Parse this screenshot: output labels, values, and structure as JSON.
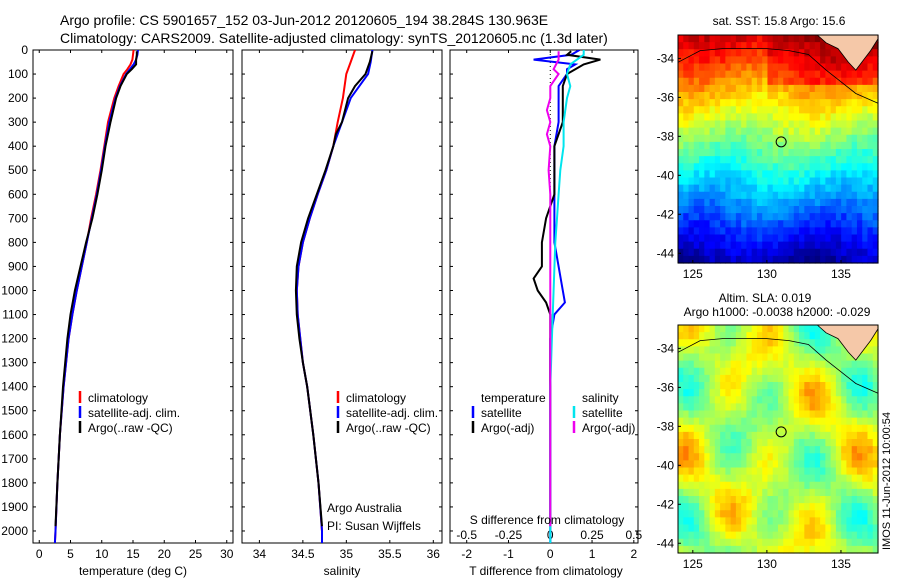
{
  "header": {
    "line1": "Argo profile: CS 5901657_152 03-Jun-2012 20120605_194 38.284S 130.963E",
    "line2": "Climatology: CARS2009. Satellite-adjusted climatology: synTS_20120605.nc (1.3d later)"
  },
  "colors": {
    "climatology": "#ff0000",
    "satellite": "#0000ff",
    "argo": "#000000",
    "salinity_satellite": "#00e5ee",
    "salinity_argo": "#ee00ee",
    "land": "#f5c8a8",
    "coast": "#000000"
  },
  "chart_data": [
    {
      "type": "line",
      "xlabel": "temperature (deg C)",
      "ylabel": "",
      "xlim": [
        -1,
        31
      ],
      "xticks": [
        0,
        5,
        10,
        15,
        20,
        25,
        30
      ],
      "ylim": [
        2050,
        0
      ],
      "yticks": [
        0,
        100,
        200,
        300,
        400,
        500,
        600,
        700,
        800,
        900,
        1000,
        1100,
        1200,
        1300,
        1400,
        1500,
        1600,
        1700,
        1800,
        1900,
        2000
      ],
      "grid": false,
      "legend": [
        "climatology",
        "satellite-adj. clim.",
        "Argo(..raw -QC)"
      ],
      "series": [
        {
          "name": "climatology",
          "color": "#ff0000",
          "depth": [
            0,
            20,
            40,
            60,
            80,
            100,
            150,
            200,
            300,
            400,
            500,
            600,
            700,
            800,
            900,
            1000,
            1100,
            1200,
            1400,
            1600,
            1800,
            2000,
            2050
          ],
          "values": [
            15.1,
            15.0,
            14.9,
            14.6,
            14.1,
            13.5,
            12.7,
            12.0,
            11.0,
            10.4,
            9.8,
            9.1,
            8.3,
            7.6,
            6.8,
            6.0,
            5.3,
            4.7,
            3.9,
            3.3,
            2.9,
            2.6,
            2.5
          ]
        },
        {
          "name": "satellite-adj. clim.",
          "color": "#0000ff",
          "depth": [
            0,
            20,
            40,
            60,
            80,
            100,
            150,
            200,
            300,
            400,
            500,
            600,
            700,
            800,
            900,
            1000,
            1100,
            1200,
            1400,
            1600,
            1800,
            2000,
            2050
          ],
          "values": [
            15.8,
            15.7,
            15.5,
            15.1,
            14.5,
            13.9,
            12.9,
            12.2,
            11.2,
            10.5,
            9.9,
            9.2,
            8.4,
            7.6,
            6.8,
            6.0,
            5.3,
            4.7,
            3.9,
            3.3,
            2.9,
            2.6,
            2.5
          ]
        },
        {
          "name": "Argo(..raw -QC)",
          "color": "#000000",
          "depth": [
            5,
            20,
            40,
            60,
            80,
            100,
            150,
            200,
            300,
            400,
            500,
            600,
            700,
            800,
            900,
            1000,
            1100,
            1200,
            1400,
            1600,
            1800,
            1980
          ],
          "values": [
            15.6,
            15.6,
            15.5,
            15.5,
            14.8,
            14.0,
            13.0,
            12.3,
            11.4,
            10.6,
            10.0,
            9.3,
            8.5,
            7.5,
            6.6,
            5.7,
            5.0,
            4.5,
            3.8,
            3.3,
            2.9,
            2.6
          ]
        }
      ]
    },
    {
      "type": "line",
      "xlabel": "salinity",
      "ylabel": "",
      "xlim": [
        33.8,
        36.1
      ],
      "xticks": [
        34,
        34.5,
        35,
        35.5,
        36
      ],
      "ylim": [
        2050,
        0
      ],
      "grid": false,
      "legend": [
        "climatology",
        "satellite-adj. clim.",
        "Argo(..raw -QC)"
      ],
      "annotation": [
        "Argo Australia",
        "PI: Susan Wijffels"
      ],
      "series": [
        {
          "name": "climatology",
          "color": "#ff0000",
          "depth": [
            0,
            50,
            100,
            200,
            300,
            400,
            500,
            600,
            700,
            800,
            900,
            1000,
            1100,
            1200,
            1300,
            1400,
            1600,
            1800,
            2000,
            2050
          ],
          "values": [
            35.1,
            35.05,
            35.0,
            34.96,
            34.9,
            34.85,
            34.77,
            34.67,
            34.58,
            34.5,
            34.45,
            34.43,
            34.44,
            34.47,
            34.5,
            34.55,
            34.62,
            34.68,
            34.72,
            34.72
          ]
        },
        {
          "name": "satellite-adj. clim.",
          "color": "#0000ff",
          "depth": [
            0,
            50,
            100,
            200,
            300,
            400,
            500,
            600,
            700,
            800,
            900,
            1000,
            1100,
            1200,
            1300,
            1400,
            1600,
            1800,
            2000,
            2050
          ],
          "values": [
            35.3,
            35.28,
            35.25,
            35.05,
            34.95,
            34.85,
            34.77,
            34.67,
            34.58,
            34.5,
            34.45,
            34.43,
            34.44,
            34.47,
            34.5,
            34.55,
            34.62,
            34.68,
            34.72,
            34.72
          ]
        },
        {
          "name": "Argo(..raw -QC)",
          "color": "#000000",
          "depth": [
            5,
            50,
            100,
            150,
            200,
            300,
            350,
            400,
            500,
            600,
            700,
            800,
            900,
            1000,
            1100,
            1200,
            1300,
            1400,
            1600,
            1800,
            1980
          ],
          "values": [
            35.3,
            35.27,
            35.22,
            35.1,
            35.02,
            34.95,
            34.88,
            34.85,
            34.76,
            34.66,
            34.56,
            34.48,
            34.43,
            34.42,
            34.43,
            34.46,
            34.5,
            34.55,
            34.62,
            34.68,
            34.72
          ]
        }
      ]
    },
    {
      "type": "line",
      "xlabel": "T difference from climatology",
      "xlabel2": "S difference from climatology",
      "xlim": [
        -2.4,
        2.1
      ],
      "xticks": [
        -2,
        -1,
        0,
        1,
        2
      ],
      "xlim2": [
        -0.6,
        0.525
      ],
      "xticks2": [
        -0.5,
        -0.25,
        0,
        0.25,
        0.5
      ],
      "ylim": [
        2050,
        0
      ],
      "grid": false,
      "legend": {
        "temperature_heading": "temperature",
        "salinity_heading": "salinity",
        "t_satellite": "satellite",
        "t_argo": "Argo(-adj)",
        "s_satellite": "satellite",
        "s_argo": "Argo(-adj)"
      },
      "series": [
        {
          "name": "satellite",
          "group": "temperature",
          "color": "#0000ff",
          "depth": [
            0,
            20,
            40,
            60,
            80,
            100,
            150,
            200,
            250,
            300,
            400,
            500,
            600,
            700,
            800,
            900,
            1000,
            1050,
            1100,
            1200,
            1300,
            1400,
            1600,
            1800,
            2000,
            2050
          ],
          "values": [
            0.7,
            0.5,
            -0.4,
            0.6,
            0.4,
            0.4,
            0.2,
            0.2,
            0.2,
            0.2,
            0.1,
            0.1,
            0.1,
            0.1,
            0.1,
            0.2,
            0.3,
            0.35,
            0.1,
            0.0,
            0.0,
            0.0,
            0.0,
            0.0,
            0.0,
            0.0
          ]
        },
        {
          "name": "Argo(-adj)",
          "group": "temperature",
          "color": "#000000",
          "depth": [
            5,
            20,
            40,
            60,
            80,
            100,
            150,
            200,
            250,
            300,
            400,
            500,
            600,
            700,
            800,
            900,
            950,
            1000,
            1050,
            1100,
            1200,
            1300,
            1400,
            1600,
            1800,
            1980
          ],
          "values": [
            0.5,
            0.4,
            1.2,
            0.8,
            0.6,
            0.4,
            0.3,
            0.3,
            0.3,
            0.3,
            0.1,
            0.1,
            0.1,
            -0.1,
            -0.2,
            -0.2,
            -0.4,
            -0.3,
            -0.1,
            0.0,
            0.0,
            0.0,
            0.0,
            0.0,
            0.0,
            0.0
          ]
        },
        {
          "name": "satellite",
          "group": "salinity",
          "color": "#00e5ee",
          "depth": [
            0,
            20,
            40,
            60,
            100,
            150,
            200,
            300,
            400,
            500,
            600,
            700,
            800,
            1000,
            1200,
            1400,
            1600,
            2000,
            2050
          ],
          "values": [
            0.2,
            0.2,
            0.16,
            0.12,
            0.1,
            0.12,
            0.1,
            0.08,
            0.08,
            0.06,
            0.05,
            0.04,
            0.03,
            0.02,
            0.01,
            0.0,
            0.0,
            0.0,
            0.0
          ]
        },
        {
          "name": "Argo(-adj)",
          "group": "salinity",
          "color": "#ee00ee",
          "depth": [
            5,
            40,
            80,
            100,
            150,
            200,
            250,
            300,
            350,
            400,
            500,
            600,
            700,
            800,
            1000,
            1200,
            1400,
            1600,
            1800,
            1980
          ],
          "values": [
            0.05,
            0.05,
            0.02,
            0.05,
            0.0,
            0.0,
            -0.02,
            0.0,
            -0.02,
            0.0,
            -0.01,
            0.0,
            0.0,
            0.0,
            0.0,
            0.0,
            0.0,
            0.0,
            0.0,
            0.0
          ]
        }
      ]
    },
    {
      "type": "heatmap",
      "title": "sat. SST: 15.8 Argo: 15.6",
      "xlim": [
        124,
        137.5
      ],
      "ylim": [
        -44.5,
        -32.8
      ],
      "xticks": [
        125,
        130,
        135
      ],
      "yticks": [
        -34,
        -36,
        -38,
        -40,
        -42,
        -44
      ],
      "marker": {
        "lon": 130.963,
        "lat": -38.284
      }
    },
    {
      "type": "heatmap",
      "title": "Altim. SLA: 0.019",
      "subtitle": "Argo h1000: -0.0038 h2000: -0.029",
      "xlim": [
        124,
        137.5
      ],
      "ylim": [
        -44.5,
        -32.8
      ],
      "xticks": [
        125,
        130,
        135
      ],
      "yticks": [
        -34,
        -36,
        -38,
        -40,
        -42,
        -44
      ],
      "marker": {
        "lon": 130.963,
        "lat": -38.284
      }
    }
  ],
  "watermark": "IMOS 11-Jun-2012 10:00:54"
}
